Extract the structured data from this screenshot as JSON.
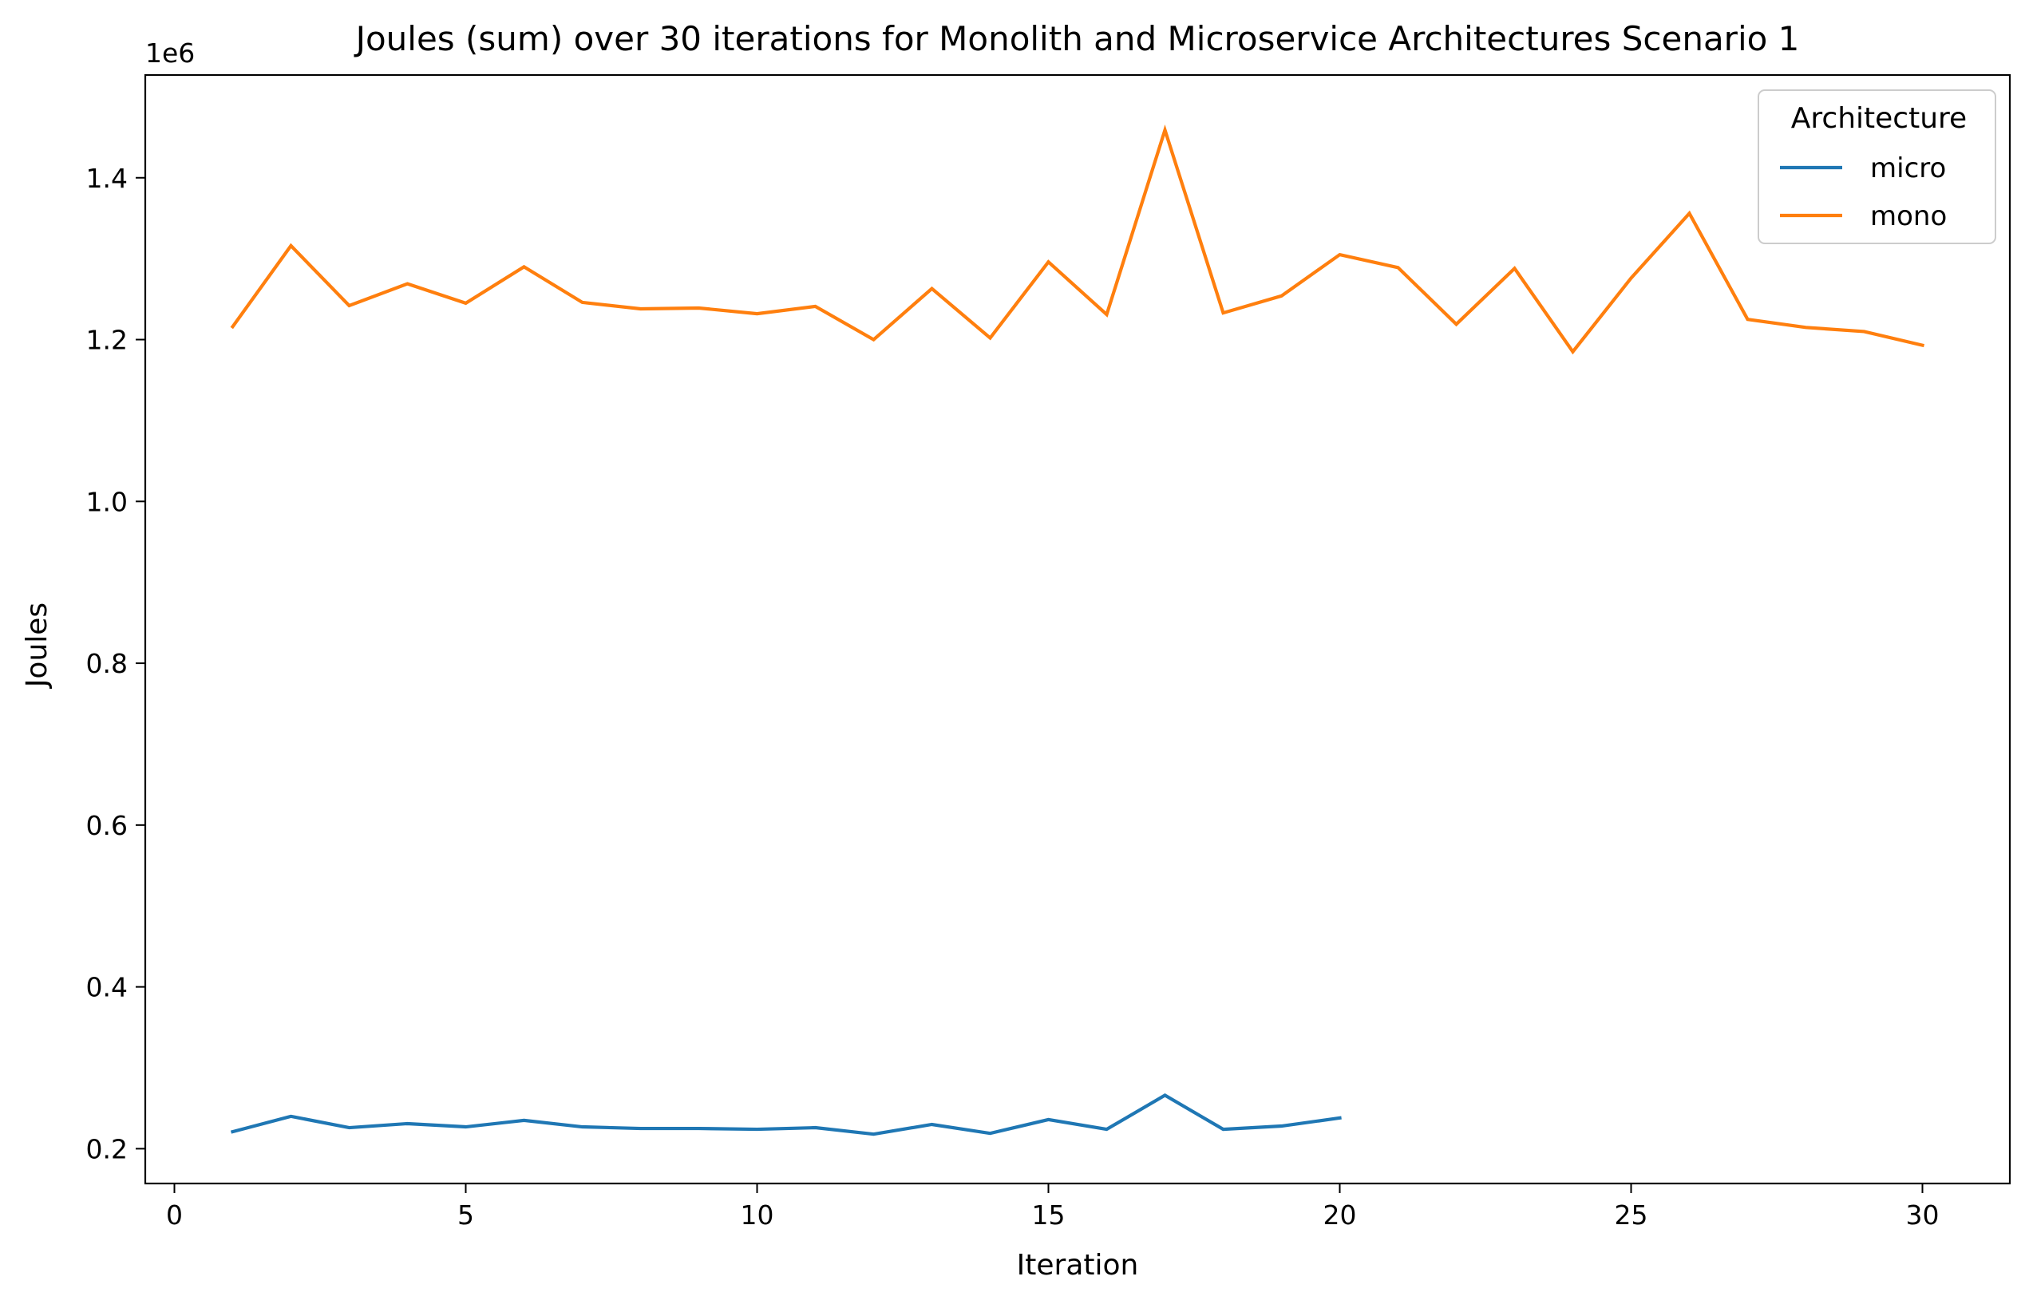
{
  "chart_data": {
    "type": "line",
    "title": "Joules (sum) over 30 iterations for Monolith and Microservice Architectures Scenario 1",
    "xlabel": "Iteration",
    "ylabel": "Joules",
    "y_offset_label": "1e6",
    "xlim": [
      -0.5,
      31.5
    ],
    "ylim": [
      0.157,
      1.527
    ],
    "x_ticks": [
      0,
      5,
      10,
      15,
      20,
      25,
      30
    ],
    "x_tick_labels": [
      "0",
      "5",
      "10",
      "15",
      "20",
      "25",
      "30"
    ],
    "y_ticks": [
      0.2,
      0.4,
      0.6,
      0.8,
      1.0,
      1.2,
      1.4
    ],
    "y_tick_labels": [
      "0.2",
      "0.4",
      "0.6",
      "0.8",
      "1.0",
      "1.2",
      "1.4"
    ],
    "grid": false,
    "legend": {
      "title": "Architecture",
      "placement": "top-right"
    },
    "series": [
      {
        "name": "micro",
        "color": "#1f77b4",
        "x": [
          1,
          2,
          3,
          4,
          5,
          6,
          7,
          8,
          9,
          10,
          11,
          12,
          13,
          14,
          15,
          16,
          17,
          18,
          19,
          20
        ],
        "values": [
          0.221,
          0.24,
          0.226,
          0.231,
          0.227,
          0.235,
          0.227,
          0.225,
          0.225,
          0.224,
          0.226,
          0.218,
          0.23,
          0.219,
          0.236,
          0.224,
          0.266,
          0.224,
          0.228,
          0.238
        ]
      },
      {
        "name": "mono",
        "color": "#ff7f0e",
        "x": [
          1,
          2,
          3,
          4,
          5,
          6,
          7,
          8,
          9,
          10,
          11,
          12,
          13,
          14,
          15,
          16,
          17,
          18,
          19,
          20,
          21,
          22,
          23,
          24,
          25,
          26,
          27,
          28,
          29,
          30
        ],
        "values": [
          1.216,
          1.316,
          1.242,
          1.269,
          1.245,
          1.29,
          1.246,
          1.238,
          1.239,
          1.232,
          1.241,
          1.2,
          1.263,
          1.202,
          1.296,
          1.231,
          1.459,
          1.233,
          1.254,
          1.305,
          1.289,
          1.219,
          1.288,
          1.185,
          1.276,
          1.356,
          1.225,
          1.215,
          1.21,
          1.193
        ]
      }
    ]
  }
}
